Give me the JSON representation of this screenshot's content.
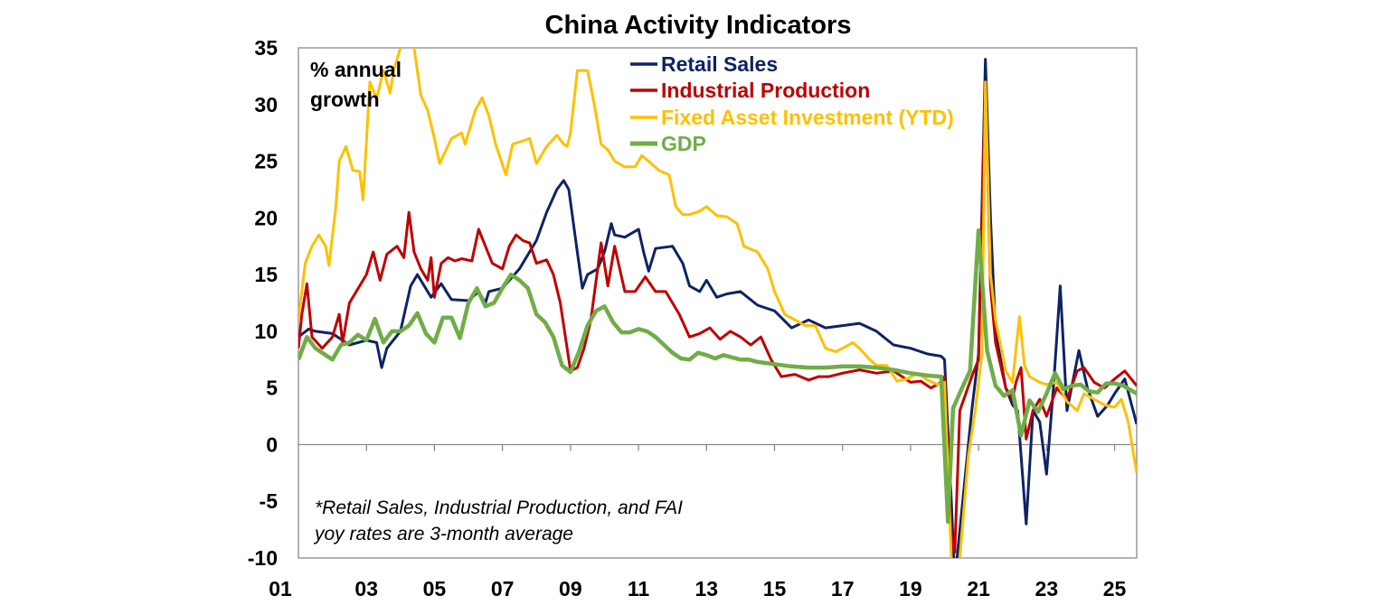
{
  "chart_data": {
    "type": "line",
    "title": "China Activity Indicators",
    "ylabel": "% annual growth",
    "xlabel": "",
    "ylim": [
      -10,
      35
    ],
    "xlim": [
      2001,
      2025.65
    ],
    "yticks": [
      35,
      30,
      25,
      20,
      15,
      10,
      5,
      0,
      -5,
      -10
    ],
    "xtick_labels": [
      "01",
      "03",
      "05",
      "07",
      "09",
      "11",
      "13",
      "15",
      "17",
      "19",
      "21",
      "23",
      "25"
    ],
    "xtick_years": [
      2001,
      2003,
      2005,
      2007,
      2009,
      2011,
      2013,
      2015,
      2017,
      2019,
      2021,
      2023,
      2025
    ],
    "grid": false,
    "legend_position": "top-center",
    "footnote": [
      "*Retail Sales, Industrial Production, and FAI",
      "yoy rates are 3-month average"
    ],
    "series": [
      {
        "name": "Retail Sales",
        "color": "#0E2366",
        "x": [
          2001,
          2001.3,
          2001.5,
          2002,
          2002.5,
          2003,
          2003.3,
          2003.45,
          2003.6,
          2004,
          2004.3,
          2004.5,
          2004.9,
          2005.2,
          2005.5,
          2006,
          2006.3,
          2006.5,
          2006.6,
          2007,
          2007.5,
          2008,
          2008.3,
          2008.6,
          2008.8,
          2008.95,
          2009.2,
          2009.35,
          2009.5,
          2009.8,
          2010,
          2010.2,
          2010.3,
          2010.6,
          2011,
          2011.15,
          2011.3,
          2011.5,
          2012,
          2012.3,
          2012.5,
          2012.8,
          2013,
          2013.3,
          2013.6,
          2014,
          2014.5,
          2015,
          2015.5,
          2016,
          2016.5,
          2017,
          2017.5,
          2018,
          2018.5,
          2019,
          2019.5,
          2019.9,
          2020.0,
          2020.2,
          2020.3,
          2020.4,
          2020.6,
          2020.8,
          2021.0,
          2021.2,
          2021.35,
          2021.5,
          2021.8,
          2022,
          2022.15,
          2022.4,
          2022.6,
          2022.8,
          2023.0,
          2023.2,
          2023.4,
          2023.6,
          2023.8,
          2023.95,
          2024.2,
          2024.5,
          2024.8,
          2025,
          2025.3,
          2025.5,
          2025.65
        ],
        "y": [
          9.5,
          10.2,
          10,
          9.8,
          8.8,
          9.2,
          9.0,
          6.8,
          8.5,
          10,
          14,
          15,
          13,
          14.2,
          12.8,
          12.7,
          13.5,
          12.5,
          13.5,
          13.8,
          15.5,
          18,
          20.5,
          22.5,
          23.3,
          22.5,
          17,
          13.8,
          15,
          15.5,
          17,
          19.5,
          18.5,
          18.3,
          19.0,
          17,
          15.3,
          17.3,
          17.5,
          16,
          14,
          13.5,
          14.5,
          13,
          13.3,
          13.5,
          12.3,
          11.8,
          10.3,
          11,
          10.3,
          10.5,
          10.7,
          10,
          8.8,
          8.5,
          8,
          7.8,
          7.5,
          -5,
          -12,
          -9,
          -3,
          3,
          8,
          34,
          20,
          10,
          5,
          3.5,
          3,
          -7,
          3,
          2,
          -2.6,
          5,
          14,
          3,
          6,
          8.3,
          5,
          2.5,
          3.5,
          4.5,
          5.8,
          3.5,
          1.8
        ]
      },
      {
        "name": "Industrial Production",
        "color": "#C00000",
        "x": [
          2001,
          2001.1,
          2001.25,
          2001.4,
          2001.7,
          2002,
          2002.2,
          2002.3,
          2002.5,
          2002.8,
          2003,
          2003.2,
          2003.4,
          2003.6,
          2003.9,
          2004.1,
          2004.25,
          2004.4,
          2004.6,
          2004.8,
          2004.9,
          2005.0,
          2005.2,
          2005.4,
          2005.6,
          2005.8,
          2006.1,
          2006.3,
          2006.5,
          2006.7,
          2007.0,
          2007.2,
          2007.4,
          2007.6,
          2007.8,
          2008.0,
          2008.3,
          2008.5,
          2008.7,
          2009.0,
          2009.2,
          2009.4,
          2009.6,
          2009.9,
          2010.1,
          2010.3,
          2010.6,
          2010.9,
          2011.2,
          2011.5,
          2011.8,
          2012.2,
          2012.5,
          2012.8,
          2013.1,
          2013.4,
          2013.7,
          2014,
          2014.3,
          2014.6,
          2014.9,
          2015.2,
          2015.6,
          2016,
          2016.3,
          2016.6,
          2017,
          2017.5,
          2018,
          2018.5,
          2019,
          2019.3,
          2019.6,
          2019.9,
          2020.0,
          2020.2,
          2020.3,
          2020.45,
          2020.8,
          2021.0,
          2021.2,
          2021.35,
          2021.5,
          2021.8,
          2022,
          2022.1,
          2022.25,
          2022.4,
          2022.6,
          2022.8,
          2023,
          2023.3,
          2023.6,
          2023.9,
          2024.1,
          2024.4,
          2024.7,
          2025.0,
          2025.3,
          2025.65
        ],
        "y": [
          8.5,
          11.5,
          14.2,
          9.5,
          8.5,
          9.5,
          11.5,
          9,
          12.5,
          14,
          15,
          17,
          14.5,
          16.8,
          17.5,
          16.5,
          20.5,
          17,
          15.5,
          14.5,
          16.5,
          13,
          16,
          16.5,
          16.2,
          16.4,
          16.2,
          19,
          17.5,
          16,
          15.5,
          17.5,
          18.5,
          18,
          17.8,
          16,
          16.3,
          15,
          12.5,
          6.5,
          6.8,
          8.5,
          11,
          17.8,
          14,
          17.5,
          13.5,
          13.5,
          14.8,
          13.5,
          13.5,
          11.5,
          9.5,
          9.8,
          10.3,
          9.3,
          10,
          9.5,
          8.8,
          9.5,
          7.5,
          6,
          6.2,
          5.7,
          6,
          6,
          6.3,
          6.6,
          6.3,
          6.5,
          5.5,
          5.6,
          5,
          5.5,
          6,
          -8,
          -9.5,
          3,
          6,
          7.5,
          32,
          14,
          9,
          5,
          4,
          5.5,
          6.8,
          0.5,
          3,
          4,
          2.5,
          5,
          4,
          6.5,
          6.8,
          5.5,
          5,
          5.8,
          6.5,
          5.2
        ]
      },
      {
        "name": "Fixed Asset Investment (YTD)",
        "color": "#FFC000",
        "x": [
          2001,
          2001.2,
          2001.4,
          2001.6,
          2001.8,
          2001.9,
          2002.1,
          2002.2,
          2002.4,
          2002.6,
          2002.8,
          2002.9,
          2003.1,
          2003.3,
          2003.5,
          2003.7,
          2003.8,
          2004.0,
          2004.1,
          2004.4,
          2004.6,
          2004.8,
          2005.0,
          2005.15,
          2005.5,
          2005.8,
          2005.9,
          2006.2,
          2006.4,
          2006.6,
          2006.8,
          2007.1,
          2007.3,
          2007.6,
          2007.8,
          2008.0,
          2008.3,
          2008.6,
          2008.8,
          2008.9,
          2009.0,
          2009.2,
          2009.5,
          2009.7,
          2009.9,
          2010.1,
          2010.3,
          2010.6,
          2010.9,
          2011.1,
          2011.3,
          2011.6,
          2011.9,
          2012.1,
          2012.3,
          2012.5,
          2012.8,
          2013.0,
          2013.3,
          2013.6,
          2013.9,
          2014.1,
          2014.5,
          2014.8,
          2015.0,
          2015.3,
          2015.6,
          2015.9,
          2016.2,
          2016.5,
          2016.8,
          2017.0,
          2017.3,
          2017.5,
          2017.8,
          2018.0,
          2018.3,
          2018.6,
          2018.9,
          2019.2,
          2019.5,
          2019.8,
          2020.0,
          2020.2,
          2020.3,
          2020.45,
          2020.7,
          2020.9,
          2021.1,
          2021.2,
          2021.35,
          2021.5,
          2021.8,
          2022.0,
          2022.2,
          2022.35,
          2022.5,
          2022.8,
          2023.0,
          2023.3,
          2023.6,
          2023.9,
          2024.1,
          2024.4,
          2024.7,
          2025.0,
          2025.2,
          2025.4,
          2025.65
        ],
        "y": [
          11,
          16,
          17.5,
          18.5,
          17.5,
          15.8,
          21,
          25,
          26.3,
          24.2,
          24.1,
          21.6,
          32,
          30.5,
          33,
          31,
          33,
          35,
          38,
          35,
          30.8,
          29.5,
          27,
          24.8,
          27,
          27.5,
          26.5,
          29.5,
          30.6,
          29,
          26.5,
          23.8,
          26.5,
          26.8,
          27,
          24.8,
          26.3,
          27.3,
          26.5,
          26.3,
          27.5,
          33,
          33,
          30,
          26.5,
          26,
          25,
          24.5,
          24.5,
          25.5,
          25,
          24.2,
          23.8,
          21,
          20.3,
          20.3,
          20.6,
          21,
          20.2,
          20.1,
          19.5,
          17.5,
          17,
          15.5,
          13.5,
          11.5,
          11,
          10.5,
          10.5,
          8.5,
          8.2,
          8.5,
          9,
          8.5,
          7.5,
          7,
          7,
          5.6,
          5.8,
          6.3,
          5.7,
          5.3,
          5.5,
          -10,
          -16,
          -10,
          -1,
          3,
          8,
          32,
          15,
          11,
          6.5,
          5.5,
          11.3,
          7,
          6,
          5.5,
          5.3,
          5.5,
          3.8,
          3,
          4.5,
          4,
          3.5,
          3.3,
          4,
          2,
          -2.5
        ]
      },
      {
        "name": "GDP",
        "color": "#70AD47",
        "x": [
          2001,
          2001.25,
          2001.5,
          2001.75,
          2002,
          2002.25,
          2002.5,
          2002.75,
          2003,
          2003.25,
          2003.5,
          2003.75,
          2004,
          2004.25,
          2004.5,
          2004.75,
          2005,
          2005.25,
          2005.5,
          2005.75,
          2006,
          2006.25,
          2006.5,
          2006.75,
          2007,
          2007.25,
          2007.5,
          2007.75,
          2008,
          2008.25,
          2008.5,
          2008.75,
          2009,
          2009.25,
          2009.5,
          2009.75,
          2010,
          2010.25,
          2010.5,
          2010.75,
          2011,
          2011.25,
          2011.5,
          2011.75,
          2012,
          2012.25,
          2012.5,
          2012.75,
          2013,
          2013.25,
          2013.5,
          2013.75,
          2014,
          2014.25,
          2014.5,
          2014.75,
          2015,
          2015.5,
          2016,
          2016.5,
          2017,
          2017.5,
          2018,
          2018.5,
          2019,
          2019.5,
          2019.9,
          2020.1,
          2020.25,
          2020.5,
          2020.75,
          2021.0,
          2021.25,
          2021.5,
          2021.75,
          2022.0,
          2022.25,
          2022.5,
          2022.75,
          2023,
          2023.25,
          2023.5,
          2023.75,
          2024,
          2024.25,
          2024.5,
          2024.75,
          2025,
          2025.25,
          2025.65
        ],
        "y": [
          7.5,
          9.5,
          8.5,
          8,
          7.5,
          8.8,
          9,
          9.7,
          9.2,
          11.1,
          9.0,
          10,
          10,
          10.5,
          11.6,
          9.8,
          9,
          11.2,
          11.2,
          9.4,
          12.5,
          13.8,
          12.2,
          12.5,
          13.8,
          15,
          14.5,
          13.8,
          11.5,
          10.8,
          9.5,
          7,
          6.4,
          8.2,
          10.5,
          11.8,
          12.2,
          10.8,
          9.9,
          9.9,
          10.2,
          10,
          9.5,
          8.8,
          8.1,
          7.6,
          7.5,
          8.1,
          7.9,
          7.6,
          7.9,
          7.7,
          7.5,
          7.5,
          7.3,
          7.2,
          7.1,
          6.9,
          6.8,
          6.8,
          6.9,
          6.9,
          6.8,
          6.6,
          6.3,
          6.1,
          6.0,
          -6.8,
          3.2,
          4.9,
          6.5,
          18.9,
          8.3,
          5.2,
          4.3,
          4.8,
          0.8,
          3.9,
          2.9,
          4.5,
          6.3,
          4.9,
          5.2,
          5.3,
          4.7,
          4.6,
          5.4,
          5.4,
          5.2,
          4.5
        ]
      }
    ]
  }
}
